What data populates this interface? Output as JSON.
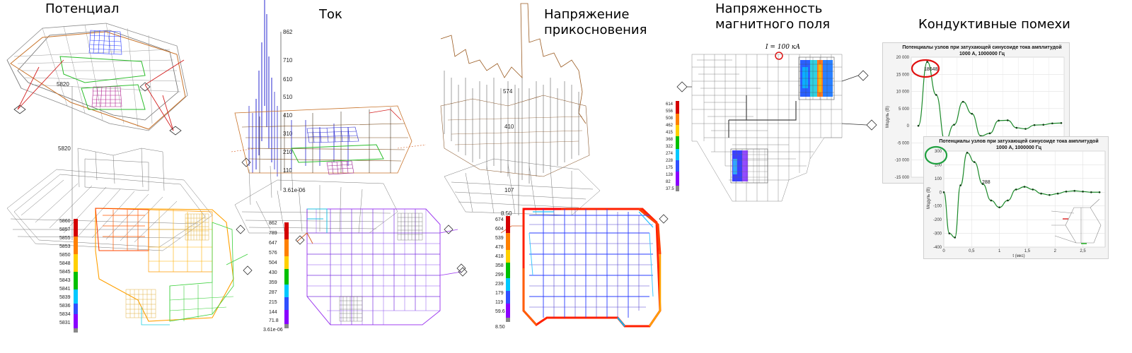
{
  "titles": {
    "potential": "Потенциал",
    "current": "Ток",
    "touch_voltage": "Напряжение прикосновения",
    "touch_voltage_l1": "Напряжение",
    "touch_voltage_l2": "прикосновения",
    "magnetic_l1": "Напряженность",
    "magnetic_l2": "магнитного поля",
    "conductive": "Кондуктивные помехи"
  },
  "potential_panel": {
    "marks": [
      "5820",
      "5820"
    ],
    "scale": [
      "5860",
      "5857",
      "5855",
      "5853",
      "5850",
      "5848",
      "5845",
      "5843",
      "5841",
      "5839",
      "5836",
      "5834",
      "5831"
    ],
    "colors": [
      "#d40000",
      "#ff6a00",
      "#ffc000",
      "#00c000",
      "#00d8ff",
      "#2060ff",
      "#7a00ff"
    ]
  },
  "current_panel": {
    "axis_ticks": [
      "862",
      "710",
      "610",
      "510",
      "410",
      "310",
      "210",
      "110",
      "3.61e-06"
    ],
    "scale": [
      "862",
      "789",
      "647",
      "576",
      "504",
      "430",
      "359",
      "287",
      "215",
      "144",
      "71.8",
      "3.61e-06"
    ]
  },
  "touch_panel": {
    "axis_ticks": [
      "574",
      "410",
      "107",
      "8.50"
    ],
    "scale": [
      "674",
      "604",
      "539",
      "478",
      "418",
      "358",
      "299",
      "239",
      "179",
      "119",
      "59.6",
      "8.50"
    ]
  },
  "magnetic_panel": {
    "current_label": "I = 100 кА",
    "scale": [
      "614",
      "556",
      "508",
      "462",
      "415",
      "368",
      "322",
      "274",
      "228",
      "175",
      "128",
      "82",
      "37.5"
    ]
  },
  "conductive_panel": {
    "chart1": {
      "title_l1": "Потенциалы узлов при затухающей синусоиде тока амплитудой",
      "title_l2": "1000 А, 1000000 Гц",
      "ylabel": "Модуль (В)",
      "yticks": [
        "20 000",
        "15 000",
        "10 000",
        "5 000",
        "0",
        "-5 000",
        "-10 000",
        "-15 000"
      ],
      "peak_label": "18648"
    },
    "chart2": {
      "title_l1": "Потенциалы узлов при затухающей синусоиде тока амплитудой",
      "title_l2": "1000 А, 1000000 Гц",
      "ylabel": "Модуль (В)",
      "xlabel": "t (мкс)",
      "yticks": [
        "300",
        "200",
        "100",
        "0",
        "-100",
        "-200",
        "-300",
        "-400"
      ],
      "xticks": [
        "0",
        "0,5",
        "1",
        "1,5",
        "2",
        "2,5"
      ],
      "peak_label": "288"
    }
  },
  "chart_data": [
    {
      "type": "line",
      "title": "Потенциалы узлов при затухающей синусоиде тока амплитудой 1000 А, 1000000 Гц",
      "ylabel": "Модуль (В)",
      "ylim": [
        -15000,
        20000
      ],
      "series": [
        {
          "values": [
            0,
            18648,
            9000,
            -4500,
            300,
            7000,
            3500,
            -3000,
            -2200,
            1500,
            1600,
            -600,
            -900,
            200,
            300,
            700,
            800
          ]
        }
      ],
      "annotations": [
        "18648"
      ]
    },
    {
      "type": "line",
      "title": "Потенциалы узлов при затухающей синусоиде тока амплитудой 1000 А, 1000000 Гц",
      "xlabel": "t (мкс)",
      "ylabel": "Модуль (В)",
      "xlim": [
        0,
        2.9
      ],
      "ylim": [
        -400,
        300
      ],
      "x": [
        0,
        0.1,
        0.2,
        0.3,
        0.42,
        0.55,
        0.7,
        0.85,
        1.0,
        1.15,
        1.3,
        1.45,
        1.6,
        1.75,
        1.9,
        2.05,
        2.2,
        2.35,
        2.5,
        2.65,
        2.8
      ],
      "series": [
        {
          "values": [
            0,
            -300,
            -330,
            50,
            288,
            220,
            60,
            -60,
            -110,
            -60,
            20,
            40,
            20,
            -10,
            -20,
            -10,
            5,
            10,
            5,
            0,
            0
          ]
        }
      ],
      "annotations": [
        "288"
      ]
    }
  ]
}
